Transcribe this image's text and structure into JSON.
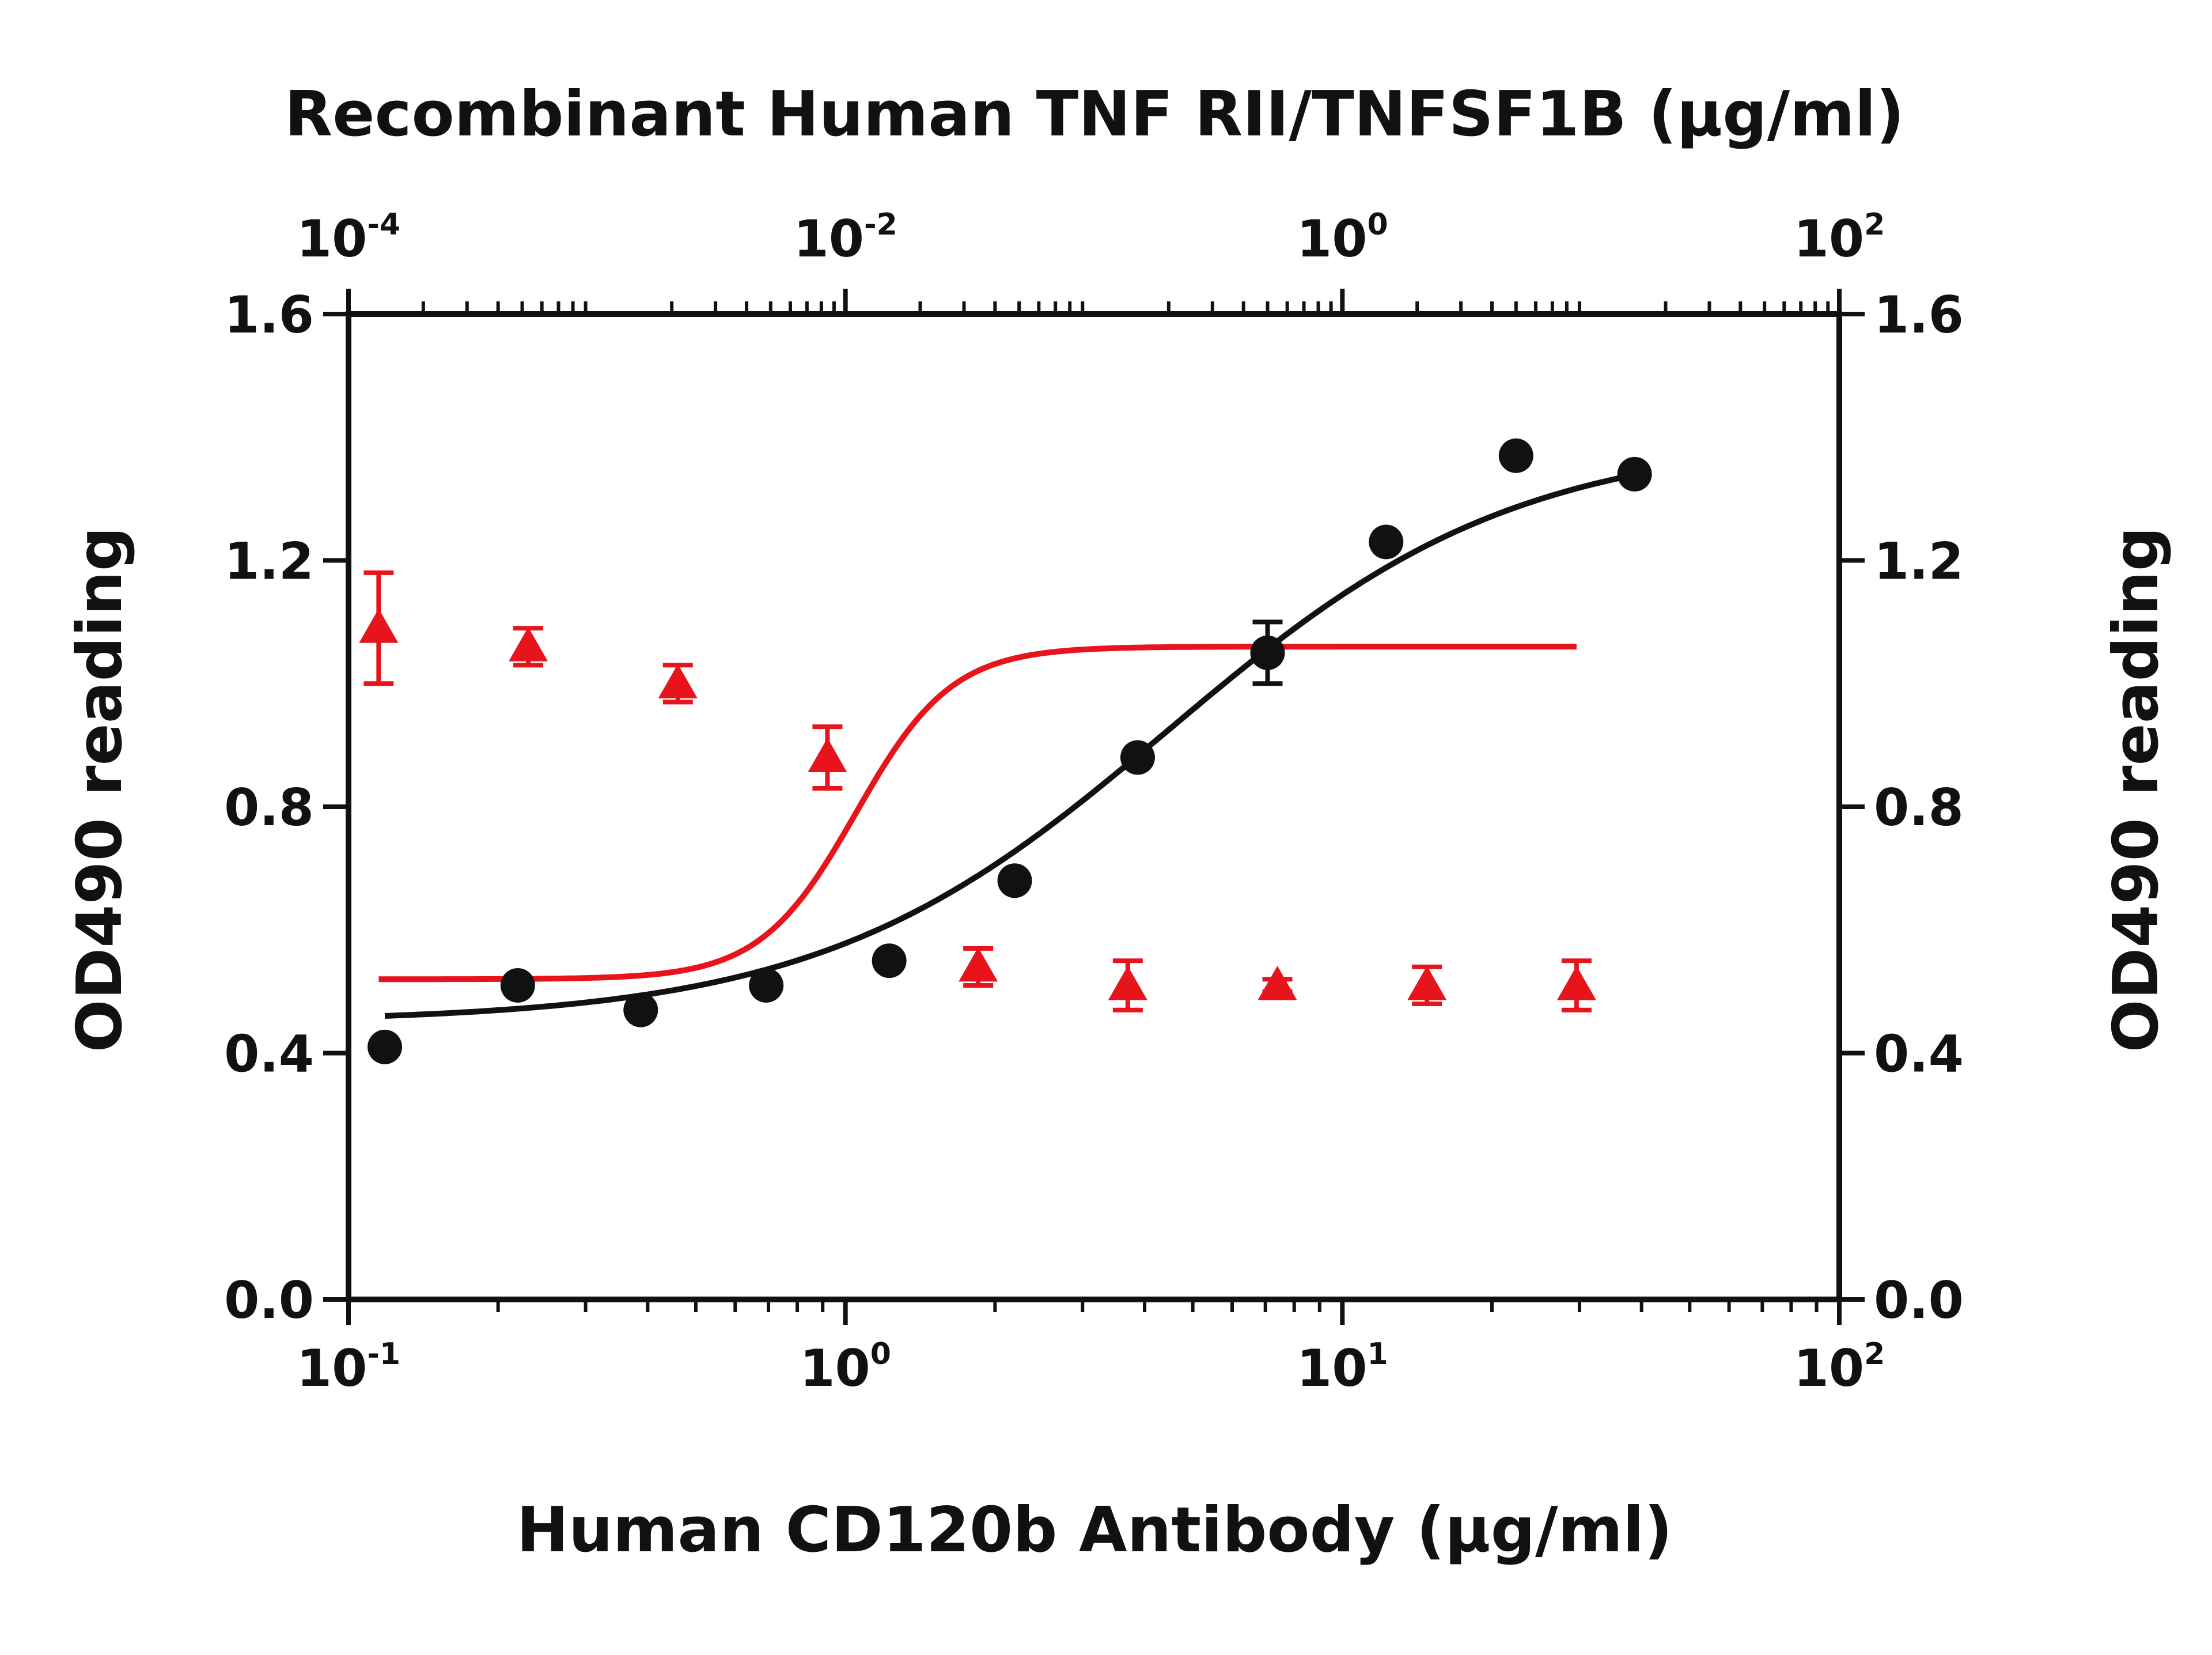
{
  "chart_data": {
    "type": "scatter",
    "top_axis": {
      "label": "Recombinant Human TNF RII/TNFSF1B (μg/ml)",
      "scale": "log",
      "range": [
        0.0001,
        100
      ],
      "tick_values": [
        0.0001,
        0.01,
        1,
        100
      ],
      "tick_labels": [
        {
          "base": "10",
          "exp": "-4"
        },
        {
          "base": "10",
          "exp": "-2"
        },
        {
          "base": "10",
          "exp": "0"
        },
        {
          "base": "10",
          "exp": "2"
        }
      ]
    },
    "bottom_axis": {
      "label": "Human CD120b Antibody (μg/ml)",
      "scale": "log",
      "range": [
        0.1,
        100
      ],
      "tick_values": [
        0.1,
        1,
        10,
        100
      ],
      "tick_labels": [
        {
          "base": "10",
          "exp": "-1"
        },
        {
          "base": "10",
          "exp": "0"
        },
        {
          "base": "10",
          "exp": "1"
        },
        {
          "base": "10",
          "exp": "2"
        }
      ]
    },
    "left_axis": {
      "label": "OD490 reading",
      "range": [
        0,
        1.6
      ],
      "tick_values": [
        0,
        0.4,
        0.8,
        1.2,
        1.6
      ],
      "tick_labels": [
        "0.0",
        "0.4",
        "0.8",
        "1.2",
        "1.6"
      ]
    },
    "right_axis": {
      "label": "OD490 reading",
      "range": [
        0,
        1.6
      ],
      "tick_values": [
        0,
        0.4,
        0.8,
        1.2,
        1.6
      ],
      "tick_labels": [
        "0.0",
        "0.4",
        "0.8",
        "1.2",
        "1.6"
      ]
    },
    "grid": false,
    "legend": "none",
    "series": [
      {
        "x_axis": "top",
        "color": "#111111",
        "marker": "circle",
        "x": [
          0.00014,
          0.00048,
          0.0015,
          0.0048,
          0.015,
          0.048,
          0.15,
          0.5,
          1.5,
          5,
          15
        ],
        "y": [
          0.41,
          0.51,
          0.47,
          0.51,
          0.55,
          0.68,
          0.88,
          1.05,
          1.23,
          1.37,
          1.34
        ],
        "error": [
          0,
          0,
          0,
          0,
          0,
          0,
          0,
          0.05,
          0,
          0,
          0
        ],
        "fit": {
          "bottom": 0.45,
          "top": 1.4,
          "ec50": 0.2,
          "hill": 0.62
        }
      },
      {
        "x_axis": "bottom",
        "color": "#e8141c",
        "marker": "triangle",
        "x": [
          0.115,
          0.23,
          0.46,
          0.92,
          1.85,
          3.7,
          7.4,
          14.8,
          29.6
        ],
        "y": [
          1.09,
          1.06,
          1.0,
          0.88,
          0.54,
          0.51,
          0.51,
          0.51,
          0.51
        ],
        "error": [
          0.09,
          0.03,
          0.03,
          0.05,
          0.03,
          0.04,
          0.01,
          0.03,
          0.04
        ],
        "fit": {
          "bottom": 0.52,
          "top": 1.06,
          "ec50": 1.05,
          "hill": 4.5
        }
      }
    ]
  }
}
